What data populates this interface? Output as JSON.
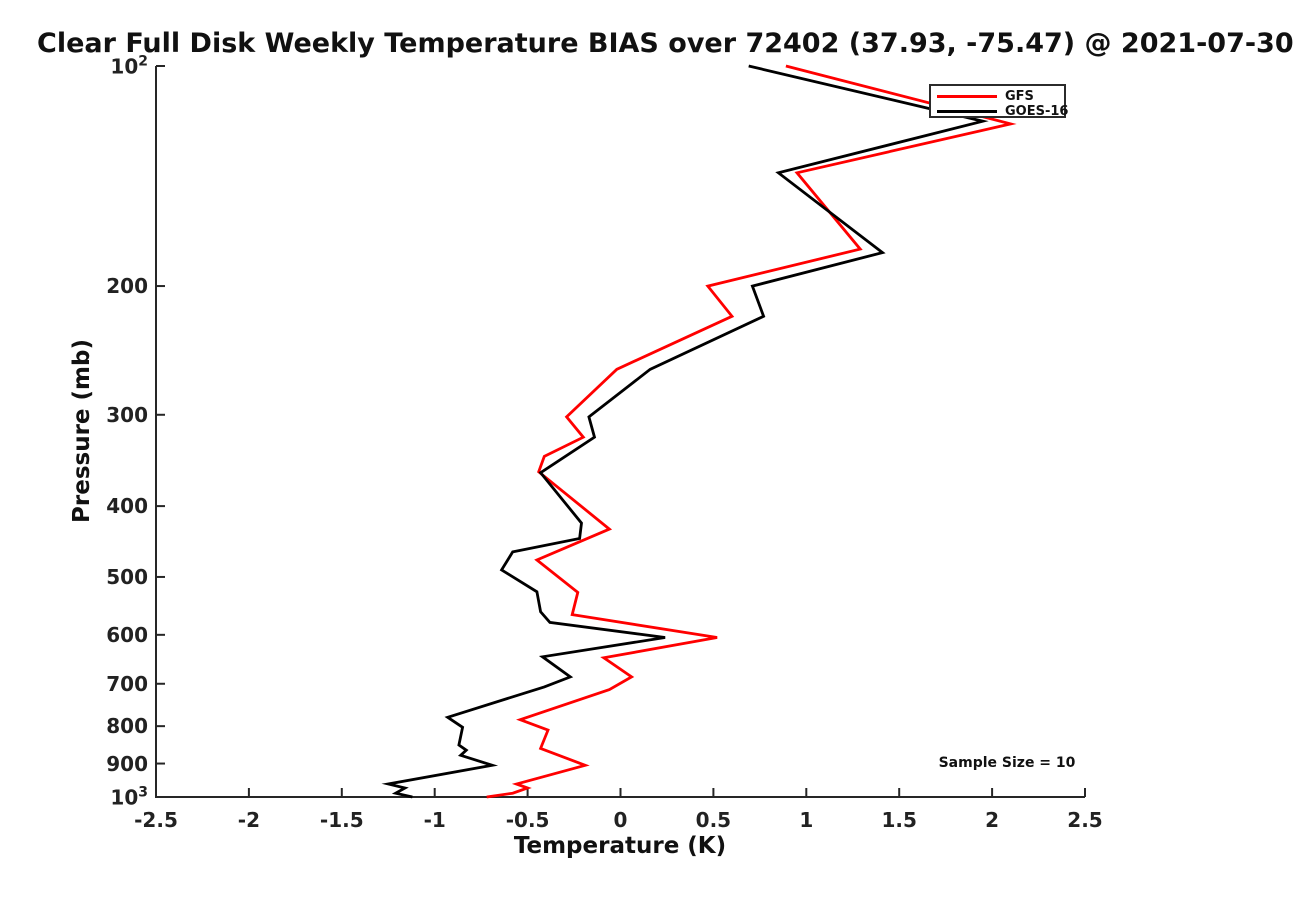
{
  "chart_data": {
    "type": "line",
    "title": "Clear Full Disk Weekly Temperature BIAS over 72402 (37.93, -75.47) @ 2021-07-30",
    "xlabel": "Temperature (K)",
    "ylabel": "Pressure (mb)",
    "annotation": "Sample Size = 10",
    "xlim": [
      -2.5,
      2.5
    ],
    "plim": [
      100,
      1000
    ],
    "yscale": "log",
    "grid": false,
    "legend_position": "top-right",
    "axis_color": "#262626",
    "x_ticks": [
      {
        "value": -2.5,
        "label": "-2.5"
      },
      {
        "value": -2,
        "label": "-2"
      },
      {
        "value": -1.5,
        "label": "-1.5"
      },
      {
        "value": -1,
        "label": "-1"
      },
      {
        "value": -0.5,
        "label": "-0.5"
      },
      {
        "value": 0,
        "label": "0"
      },
      {
        "value": 0.5,
        "label": "0.5"
      },
      {
        "value": 1,
        "label": "1"
      },
      {
        "value": 1.5,
        "label": "1.5"
      },
      {
        "value": 2,
        "label": "2"
      },
      {
        "value": 2.5,
        "label": "2.5"
      }
    ],
    "y_ticks": [
      {
        "value": 100,
        "base": "10",
        "exp": "2"
      },
      {
        "value": 200,
        "label": "200"
      },
      {
        "value": 300,
        "label": "300"
      },
      {
        "value": 400,
        "label": "400"
      },
      {
        "value": 500,
        "label": "500"
      },
      {
        "value": 600,
        "label": "600"
      },
      {
        "value": 700,
        "label": "700"
      },
      {
        "value": 800,
        "label": "800"
      },
      {
        "value": 900,
        "label": "900"
      },
      {
        "value": 1000,
        "base": "10",
        "exp": "3"
      }
    ],
    "legend": [
      {
        "name": "GFS",
        "color": "#ff0000"
      },
      {
        "name": "GOES-16",
        "color": "#000000"
      }
    ],
    "series": [
      {
        "name": "GFS",
        "color": "#ff0000",
        "points_bias_pressure": [
          [
            0.89,
            100
          ],
          [
            2.1,
            120
          ],
          [
            0.95,
            140
          ],
          [
            1.29,
            178
          ],
          [
            0.47,
            200
          ],
          [
            0.6,
            220
          ],
          [
            -0.02,
            260
          ],
          [
            -0.29,
            302
          ],
          [
            -0.2,
            322
          ],
          [
            -0.41,
            342
          ],
          [
            -0.44,
            359
          ],
          [
            -0.06,
            430
          ],
          [
            -0.45,
            474
          ],
          [
            -0.23,
            525
          ],
          [
            -0.26,
            563
          ],
          [
            0.52,
            605
          ],
          [
            -0.09,
            645
          ],
          [
            0.06,
            685
          ],
          [
            -0.06,
            713
          ],
          [
            -0.54,
            784
          ],
          [
            -0.39,
            810
          ],
          [
            -0.43,
            858
          ],
          [
            -0.19,
            905
          ],
          [
            -0.56,
            960
          ],
          [
            -0.5,
            972
          ],
          [
            -0.58,
            988
          ],
          [
            -0.72,
            1000
          ]
        ]
      },
      {
        "name": "GOES-16",
        "color": "#000000",
        "points_bias_pressure": [
          [
            0.69,
            100
          ],
          [
            1.95,
            119
          ],
          [
            0.85,
            140
          ],
          [
            1.41,
            180
          ],
          [
            0.71,
            200
          ],
          [
            0.77,
            220
          ],
          [
            0.16,
            260
          ],
          [
            -0.17,
            302
          ],
          [
            -0.14,
            322
          ],
          [
            -0.43,
            360
          ],
          [
            -0.21,
            422
          ],
          [
            -0.22,
            443
          ],
          [
            -0.58,
            462
          ],
          [
            -0.64,
            489
          ],
          [
            -0.45,
            524
          ],
          [
            -0.43,
            558
          ],
          [
            -0.38,
            577
          ],
          [
            0.24,
            605
          ],
          [
            -0.42,
            643
          ],
          [
            -0.27,
            685
          ],
          [
            -0.41,
            707
          ],
          [
            -0.93,
            778
          ],
          [
            -0.85,
            803
          ],
          [
            -0.87,
            849
          ],
          [
            -0.83,
            863
          ],
          [
            -0.86,
            877
          ],
          [
            -0.69,
            905
          ],
          [
            -1.25,
            960
          ],
          [
            -1.16,
            972
          ],
          [
            -1.21,
            988
          ],
          [
            -1.12,
            1000
          ]
        ]
      }
    ]
  }
}
